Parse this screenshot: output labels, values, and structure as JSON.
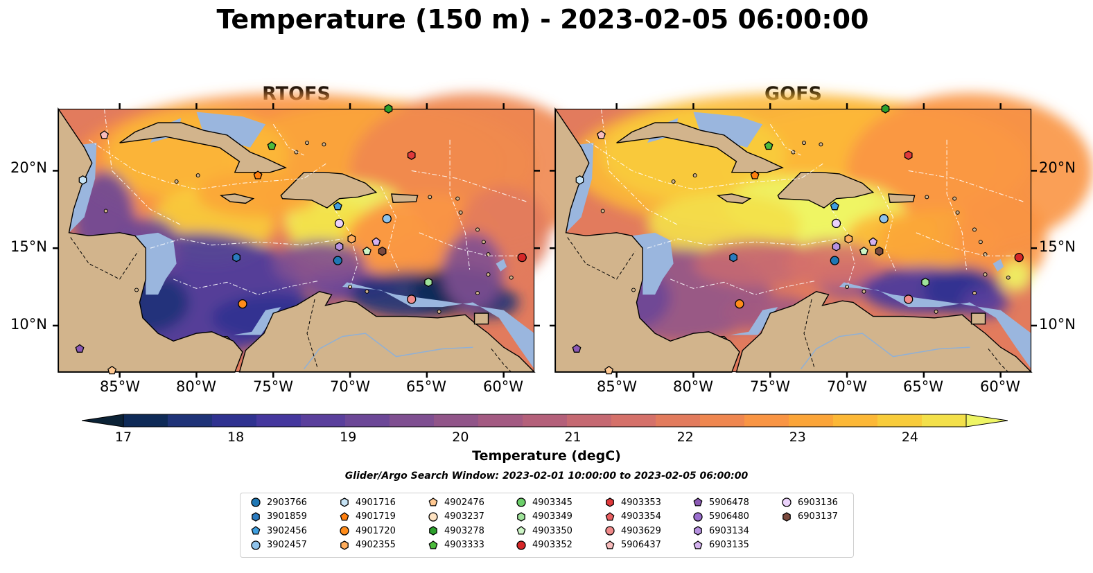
{
  "title": "Temperature (150 m) - 2023-02-05 06:00:00",
  "panels": [
    {
      "title": "RTOFS"
    },
    {
      "title": "GOFS"
    }
  ],
  "axes": {
    "lat_ticks": [
      "20°N",
      "15°N",
      "10°N"
    ],
    "lon_ticks": [
      "85°W",
      "80°W",
      "75°W",
      "70°W",
      "65°W",
      "60°W"
    ],
    "lon_range": [
      -89,
      -58
    ],
    "lat_range": [
      7,
      24
    ]
  },
  "colorbar": {
    "label": "Temperature (degC)",
    "ticks": [
      "17",
      "18",
      "19",
      "20",
      "21",
      "22",
      "23",
      "24"
    ],
    "range": [
      17,
      24.5
    ],
    "colors": [
      "#0b2236",
      "#0e2a57",
      "#1f3378",
      "#2f3290",
      "#45379e",
      "#5a3f9c",
      "#6c4797",
      "#7f4f91",
      "#915589",
      "#a35a82",
      "#b4607a",
      "#c56972",
      "#d5716a",
      "#e27b5d",
      "#ef8750",
      "#f99544",
      "#fba539",
      "#fcb837",
      "#f8cc3b",
      "#f3e04a",
      "#eef565"
    ],
    "extend": "both"
  },
  "window_text": "Glider/Argo Search Window: 2023-02-01 10:00:00 to 2023-02-05 06:00:00",
  "legend": [
    {
      "id": "2903766",
      "marker": "circle",
      "color": "#1f77b4"
    },
    {
      "id": "3901859",
      "marker": "hexagon",
      "color": "#2b7bbf"
    },
    {
      "id": "3902456",
      "marker": "pentagon",
      "color": "#3f9fe0"
    },
    {
      "id": "3902457",
      "marker": "circle",
      "color": "#8fc3eb"
    },
    {
      "id": "4901716",
      "marker": "hexagon",
      "color": "#c6e3f5"
    },
    {
      "id": "4901719",
      "marker": "pentagon",
      "color": "#ff7f0e"
    },
    {
      "id": "4901720",
      "marker": "circle",
      "color": "#ff8c1a"
    },
    {
      "id": "4902355",
      "marker": "hexagon",
      "color": "#ffad5c"
    },
    {
      "id": "4902476",
      "marker": "pentagon",
      "color": "#ffc891"
    },
    {
      "id": "4903237",
      "marker": "circle",
      "color": "#ffe3c2"
    },
    {
      "id": "4903278",
      "marker": "hexagon",
      "color": "#2ca02c"
    },
    {
      "id": "4903333",
      "marker": "pentagon",
      "color": "#4cbb3c"
    },
    {
      "id": "4903345",
      "marker": "circle",
      "color": "#6ccf6a"
    },
    {
      "id": "4903349",
      "marker": "hexagon",
      "color": "#9fe39a"
    },
    {
      "id": "4903350",
      "marker": "pentagon",
      "color": "#cdf5c6"
    },
    {
      "id": "4903352",
      "marker": "circle",
      "color": "#d62728"
    },
    {
      "id": "4903353",
      "marker": "hexagon",
      "color": "#e0393b"
    },
    {
      "id": "4903354",
      "marker": "pentagon",
      "color": "#ea5f61"
    },
    {
      "id": "4903629",
      "marker": "circle",
      "color": "#f08a8a"
    },
    {
      "id": "5906437",
      "marker": "pentagon",
      "color": "#f8bcbc"
    },
    {
      "id": "5906478",
      "marker": "pentagon",
      "color": "#8c5ab5"
    },
    {
      "id": "5906480",
      "marker": "circle",
      "color": "#9b6fcf"
    },
    {
      "id": "6903134",
      "marker": "hexagon",
      "color": "#b691e0"
    },
    {
      "id": "6903135",
      "marker": "pentagon",
      "color": "#d4b2ef"
    },
    {
      "id": "6903136",
      "marker": "circle",
      "color": "#ebd2fb"
    },
    {
      "id": "6903137",
      "marker": "hexagon",
      "color": "#7b4a3e"
    }
  ],
  "markers": [
    {
      "id": "2903766",
      "lon": -70.8,
      "lat": 14.2
    },
    {
      "id": "3901859",
      "lon": -77.4,
      "lat": 14.4
    },
    {
      "id": "3902456",
      "lon": -70.8,
      "lat": 17.7
    },
    {
      "id": "3902457",
      "lon": -67.6,
      "lat": 16.9
    },
    {
      "id": "4901716",
      "lon": -87.4,
      "lat": 19.4
    },
    {
      "id": "4901719",
      "lon": -76.0,
      "lat": 19.7
    },
    {
      "id": "4901720",
      "lon": -77.0,
      "lat": 11.4
    },
    {
      "id": "4902355",
      "lon": -69.9,
      "lat": 15.6
    },
    {
      "id": "4902476",
      "lon": -85.5,
      "lat": 7.1
    },
    {
      "id": "4903278",
      "lon": -67.5,
      "lat": 24.0
    },
    {
      "id": "4903333",
      "lon": -75.1,
      "lat": 21.6
    },
    {
      "id": "4903350",
      "lon": -68.9,
      "lat": 14.8
    },
    {
      "id": "4903352",
      "lon": -58.8,
      "lat": 14.4
    },
    {
      "id": "4903349",
      "lon": -64.9,
      "lat": 12.8
    },
    {
      "id": "4903353",
      "lon": -66.0,
      "lat": 21.0
    },
    {
      "id": "4903629",
      "lon": -66.0,
      "lat": 11.7
    },
    {
      "id": "5906437",
      "lon": -86.0,
      "lat": 22.3
    },
    {
      "id": "5906478",
      "lon": -87.6,
      "lat": 8.5
    },
    {
      "id": "6903134",
      "lon": -70.7,
      "lat": 15.1
    },
    {
      "id": "6903135",
      "lon": -68.3,
      "lat": 15.4
    },
    {
      "id": "6903136",
      "lon": -70.7,
      "lat": 16.6
    },
    {
      "id": "6903137",
      "lon": -67.9,
      "lat": 14.8
    }
  ],
  "land_color": "#d2b48c",
  "shelf_color": "#9ab6de",
  "deep_color": "#0b2236"
}
